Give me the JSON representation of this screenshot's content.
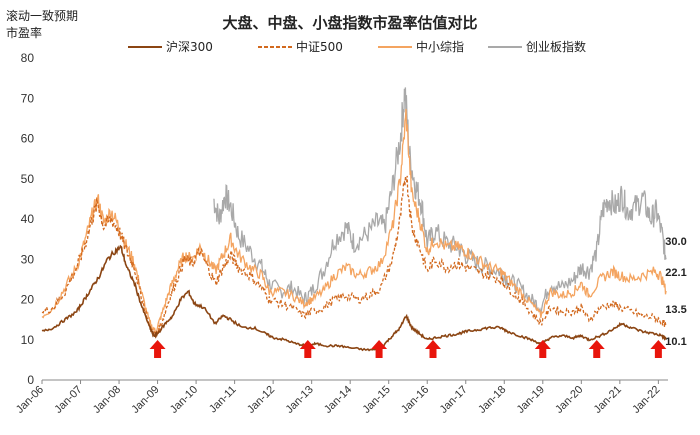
{
  "chart_data": {
    "type": "line",
    "title": "大盘、中盘、小盘指数市盈率估值对比",
    "ylabel_line1": "滚动一致预期",
    "ylabel_line2": "市盈率",
    "ylim": [
      0,
      80
    ],
    "yticks": [
      0,
      10,
      20,
      30,
      40,
      50,
      60,
      70,
      80
    ],
    "x_ticks": [
      "Jan-06",
      "Jan-07",
      "Jan-08",
      "Jan-09",
      "Jan-10",
      "Jan-11",
      "Jan-12",
      "Jan-13",
      "Jan-14",
      "Jan-15",
      "Jan-16",
      "Jan-17",
      "Jan-18",
      "Jan-19",
      "Jan-20",
      "Jan-21",
      "Jan-22"
    ],
    "legend_position": "top",
    "series": [
      {
        "name": "沪深300",
        "color": "#8B4513",
        "dash": "solid",
        "points": [
          [
            2006.0,
            12
          ],
          [
            2006.3,
            13
          ],
          [
            2006.6,
            15
          ],
          [
            2006.9,
            17
          ],
          [
            2007.1,
            20
          ],
          [
            2007.3,
            23
          ],
          [
            2007.5,
            26
          ],
          [
            2007.7,
            30
          ],
          [
            2007.9,
            32
          ],
          [
            2008.05,
            33
          ],
          [
            2008.2,
            28
          ],
          [
            2008.4,
            24
          ],
          [
            2008.6,
            18
          ],
          [
            2008.8,
            13
          ],
          [
            2008.9,
            11
          ],
          [
            2009.0,
            11.5
          ],
          [
            2009.2,
            14
          ],
          [
            2009.4,
            16
          ],
          [
            2009.6,
            20
          ],
          [
            2009.8,
            22
          ],
          [
            2009.95,
            19
          ],
          [
            2010.2,
            18
          ],
          [
            2010.5,
            14
          ],
          [
            2010.7,
            16
          ],
          [
            2010.9,
            15
          ],
          [
            2011.2,
            13
          ],
          [
            2011.5,
            13
          ],
          [
            2011.8,
            11.5
          ],
          [
            2012.0,
            10.5
          ],
          [
            2012.3,
            10
          ],
          [
            2012.6,
            9
          ],
          [
            2012.9,
            8.5
          ],
          [
            2013.1,
            9
          ],
          [
            2013.4,
            8.5
          ],
          [
            2013.7,
            8.5
          ],
          [
            2014.0,
            8
          ],
          [
            2014.4,
            7.5
          ],
          [
            2014.7,
            7.5
          ],
          [
            2014.9,
            9
          ],
          [
            2015.1,
            11
          ],
          [
            2015.3,
            13
          ],
          [
            2015.45,
            16
          ],
          [
            2015.6,
            13
          ],
          [
            2015.8,
            11.5
          ],
          [
            2016.0,
            10
          ],
          [
            2016.2,
            10.5
          ],
          [
            2016.5,
            11
          ],
          [
            2016.8,
            11.5
          ],
          [
            2017.0,
            12
          ],
          [
            2017.3,
            12.5
          ],
          [
            2017.6,
            13
          ],
          [
            2017.9,
            13
          ],
          [
            2018.1,
            12
          ],
          [
            2018.4,
            11
          ],
          [
            2018.7,
            10
          ],
          [
            2018.95,
            9
          ],
          [
            2019.2,
            10.5
          ],
          [
            2019.5,
            11
          ],
          [
            2019.8,
            10.5
          ],
          [
            2020.0,
            11
          ],
          [
            2020.2,
            10
          ],
          [
            2020.5,
            11
          ],
          [
            2020.8,
            12.5
          ],
          [
            2021.05,
            14
          ],
          [
            2021.3,
            13
          ],
          [
            2021.6,
            12
          ],
          [
            2021.9,
            11.5
          ],
          [
            2022.1,
            11
          ],
          [
            2022.2,
            10.1
          ]
        ],
        "end_value": 10.1
      },
      {
        "name": "中证500",
        "color": "#D2691E",
        "dash": "dashed",
        "points": [
          [
            2006.0,
            17
          ],
          [
            2006.3,
            18
          ],
          [
            2006.6,
            22
          ],
          [
            2006.9,
            28
          ],
          [
            2007.1,
            33
          ],
          [
            2007.3,
            40
          ],
          [
            2007.45,
            44
          ],
          [
            2007.6,
            38
          ],
          [
            2007.8,
            40
          ],
          [
            2008.0,
            37
          ],
          [
            2008.2,
            32
          ],
          [
            2008.4,
            28
          ],
          [
            2008.6,
            20
          ],
          [
            2008.8,
            13
          ],
          [
            2008.95,
            11
          ],
          [
            2009.1,
            14
          ],
          [
            2009.3,
            20
          ],
          [
            2009.5,
            25
          ],
          [
            2009.7,
            30
          ],
          [
            2009.9,
            29
          ],
          [
            2010.1,
            32
          ],
          [
            2010.3,
            28
          ],
          [
            2010.5,
            24
          ],
          [
            2010.7,
            28
          ],
          [
            2010.9,
            31
          ],
          [
            2011.1,
            28
          ],
          [
            2011.4,
            26
          ],
          [
            2011.7,
            23
          ],
          [
            2011.9,
            20
          ],
          [
            2012.2,
            19
          ],
          [
            2012.5,
            18
          ],
          [
            2012.8,
            16
          ],
          [
            2013.0,
            17
          ],
          [
            2013.3,
            18
          ],
          [
            2013.6,
            20
          ],
          [
            2013.9,
            21
          ],
          [
            2014.2,
            20
          ],
          [
            2014.5,
            21
          ],
          [
            2014.8,
            23
          ],
          [
            2015.1,
            30
          ],
          [
            2015.3,
            40
          ],
          [
            2015.45,
            52
          ],
          [
            2015.6,
            38
          ],
          [
            2015.8,
            33
          ],
          [
            2016.0,
            27
          ],
          [
            2016.2,
            30
          ],
          [
            2016.5,
            28
          ],
          [
            2016.8,
            29
          ],
          [
            2017.0,
            28
          ],
          [
            2017.3,
            27
          ],
          [
            2017.6,
            26
          ],
          [
            2017.9,
            25
          ],
          [
            2018.1,
            23
          ],
          [
            2018.4,
            20
          ],
          [
            2018.7,
            17
          ],
          [
            2018.95,
            14
          ],
          [
            2019.2,
            18
          ],
          [
            2019.5,
            17
          ],
          [
            2019.8,
            17
          ],
          [
            2020.0,
            18
          ],
          [
            2020.2,
            15
          ],
          [
            2020.5,
            18
          ],
          [
            2020.8,
            19
          ],
          [
            2021.0,
            18
          ],
          [
            2021.3,
            17
          ],
          [
            2021.6,
            16
          ],
          [
            2021.9,
            15.5
          ],
          [
            2022.1,
            14.5
          ],
          [
            2022.2,
            13.5
          ]
        ],
        "end_value": 13.5
      },
      {
        "name": "中小综指",
        "color": "#F4A460",
        "dash": "solid",
        "points": [
          [
            2006.0,
            16
          ],
          [
            2006.3,
            18
          ],
          [
            2006.6,
            23
          ],
          [
            2006.9,
            28
          ],
          [
            2007.1,
            34
          ],
          [
            2007.3,
            41
          ],
          [
            2007.45,
            45
          ],
          [
            2007.6,
            39
          ],
          [
            2007.8,
            42
          ],
          [
            2008.0,
            38
          ],
          [
            2008.2,
            33
          ],
          [
            2008.4,
            29
          ],
          [
            2008.6,
            21
          ],
          [
            2008.8,
            14
          ],
          [
            2008.95,
            12
          ],
          [
            2009.1,
            16
          ],
          [
            2009.3,
            22
          ],
          [
            2009.5,
            27
          ],
          [
            2009.7,
            31
          ],
          [
            2009.9,
            30
          ],
          [
            2010.1,
            33
          ],
          [
            2010.3,
            30
          ],
          [
            2010.5,
            27
          ],
          [
            2010.7,
            31
          ],
          [
            2010.9,
            35
          ],
          [
            2011.1,
            31
          ],
          [
            2011.4,
            28
          ],
          [
            2011.7,
            26
          ],
          [
            2011.9,
            22
          ],
          [
            2012.2,
            22
          ],
          [
            2012.5,
            21
          ],
          [
            2012.8,
            19
          ],
          [
            2013.0,
            20
          ],
          [
            2013.3,
            22
          ],
          [
            2013.6,
            26
          ],
          [
            2013.9,
            28
          ],
          [
            2014.2,
            26
          ],
          [
            2014.5,
            27
          ],
          [
            2014.8,
            29
          ],
          [
            2015.1,
            38
          ],
          [
            2015.3,
            50
          ],
          [
            2015.45,
            66
          ],
          [
            2015.6,
            46
          ],
          [
            2015.8,
            40
          ],
          [
            2016.0,
            32
          ],
          [
            2016.2,
            35
          ],
          [
            2016.5,
            33
          ],
          [
            2016.8,
            33
          ],
          [
            2017.0,
            32
          ],
          [
            2017.3,
            30
          ],
          [
            2017.6,
            28
          ],
          [
            2017.9,
            27
          ],
          [
            2018.1,
            25
          ],
          [
            2018.4,
            22
          ],
          [
            2018.7,
            19
          ],
          [
            2018.95,
            16
          ],
          [
            2019.2,
            22
          ],
          [
            2019.5,
            21
          ],
          [
            2019.8,
            22
          ],
          [
            2020.0,
            24
          ],
          [
            2020.2,
            21
          ],
          [
            2020.5,
            25
          ],
          [
            2020.8,
            27
          ],
          [
            2021.0,
            26
          ],
          [
            2021.3,
            25
          ],
          [
            2021.6,
            26
          ],
          [
            2021.9,
            27
          ],
          [
            2022.05,
            26
          ],
          [
            2022.2,
            22.1
          ]
        ],
        "end_value": 22.1
      },
      {
        "name": "创业板指数",
        "color": "#A9A9A9",
        "dash": "solid",
        "points": [
          [
            2010.45,
            45
          ],
          [
            2010.6,
            40
          ],
          [
            2010.75,
            46
          ],
          [
            2010.9,
            43
          ],
          [
            2011.1,
            36
          ],
          [
            2011.4,
            32
          ],
          [
            2011.7,
            28
          ],
          [
            2011.9,
            24
          ],
          [
            2012.2,
            22
          ],
          [
            2012.5,
            23
          ],
          [
            2012.8,
            20
          ],
          [
            2013.0,
            22
          ],
          [
            2013.3,
            27
          ],
          [
            2013.6,
            35
          ],
          [
            2013.9,
            38
          ],
          [
            2014.1,
            34
          ],
          [
            2014.4,
            36
          ],
          [
            2014.7,
            39
          ],
          [
            2014.9,
            38
          ],
          [
            2015.1,
            48
          ],
          [
            2015.3,
            60
          ],
          [
            2015.42,
            72
          ],
          [
            2015.55,
            55
          ],
          [
            2015.7,
            48
          ],
          [
            2015.85,
            44
          ],
          [
            2016.0,
            34
          ],
          [
            2016.2,
            37
          ],
          [
            2016.5,
            34
          ],
          [
            2016.8,
            33
          ],
          [
            2017.0,
            31
          ],
          [
            2017.3,
            29
          ],
          [
            2017.6,
            28
          ],
          [
            2017.9,
            27
          ],
          [
            2018.1,
            25
          ],
          [
            2018.4,
            23
          ],
          [
            2018.7,
            20
          ],
          [
            2018.95,
            18
          ],
          [
            2019.2,
            24
          ],
          [
            2019.5,
            23
          ],
          [
            2019.8,
            25
          ],
          [
            2020.0,
            28
          ],
          [
            2020.2,
            27
          ],
          [
            2020.4,
            32
          ],
          [
            2020.55,
            42
          ],
          [
            2020.7,
            45
          ],
          [
            2020.9,
            43
          ],
          [
            2021.05,
            46
          ],
          [
            2021.2,
            42
          ],
          [
            2021.4,
            43
          ],
          [
            2021.6,
            45
          ],
          [
            2021.8,
            40
          ],
          [
            2021.95,
            42
          ],
          [
            2022.1,
            36
          ],
          [
            2022.2,
            30.0
          ]
        ],
        "end_value": 30.0
      }
    ],
    "arrows_at": [
      2009.0,
      2012.9,
      2014.75,
      2016.15,
      2019.0,
      2020.4,
      2022.0
    ]
  }
}
